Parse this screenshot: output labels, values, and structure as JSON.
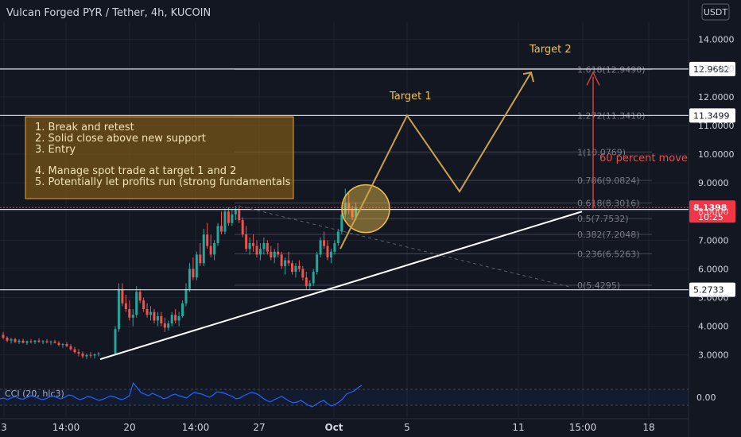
{
  "header": {
    "symbol_title": "Vulcan Forged PYR / Tether, 4h, KUCOIN",
    "currency": "USDT"
  },
  "colors": {
    "background": "#131722",
    "grid": "#1f2331",
    "axis_text": "#d1d4dc",
    "up_candle": "#26a69a",
    "down_candle": "#ef5350",
    "annotation_gold": "#f0c24a",
    "note_box_bg": "#9a6a12",
    "note_box_border": "#f0a030",
    "move_arrow": "#c9433f",
    "current_price_badge": "#f23645",
    "cci_line": "#2962ff"
  },
  "annotations": {
    "target1_label": "Target 1",
    "target2_label": "Target 2",
    "move_label": "60 percent move",
    "notes": [
      "1. Break and retest",
      "2. Solid close above new support",
      "3. Entry",
      "",
      "4. Manage spot trade at target 1 and 2",
      "5. Potentially let profits run (strong fundamentals"
    ]
  },
  "cci": {
    "label": "CCI (20, hlc3)",
    "axis_value": "0.00",
    "upper_band": 100,
    "lower_band": -100,
    "values": [
      -20,
      -10,
      -30,
      -5,
      10,
      -15,
      -25,
      -5,
      20,
      10,
      -10,
      -30,
      -20,
      5,
      15,
      -5,
      -20,
      0,
      30,
      20,
      -10,
      -30,
      -15,
      10,
      0,
      -20,
      -40,
      -25,
      -5,
      15,
      5,
      -15,
      -30,
      -10,
      20,
      180,
      120,
      60,
      40,
      20,
      50,
      30,
      10,
      -20,
      -5,
      25,
      40,
      20,
      5,
      -10,
      30,
      60,
      50,
      40,
      20,
      0,
      30,
      70,
      60,
      50,
      30,
      10,
      -20,
      -10,
      20,
      40,
      60,
      50,
      30,
      -10,
      -40,
      -60,
      -30,
      -10,
      10,
      -20,
      -50,
      -70,
      -60,
      -40,
      -70,
      -100,
      -120,
      -90,
      -60,
      -40,
      -80,
      -110,
      -90,
      -60,
      -20,
      40,
      60,
      80,
      120,
      150
    ]
  },
  "chart_data": {
    "type": "candlestick",
    "title": "Vulcan Forged PYR / Tether, 4h, KUCOIN",
    "yaxis": {
      "ticks": [
        "3.0000",
        "4.0000",
        "5.0000",
        "6.0000",
        "7.0000",
        "8.0000",
        "9.0000",
        "10.0000",
        "11.0000",
        "12.0000",
        "13.0000",
        "14.0000"
      ],
      "ylim": [
        2.3,
        14.6
      ]
    },
    "xaxis": {
      "ticks": [
        "3",
        "14:00",
        "20",
        "14:00",
        "27",
        "Oct",
        "5",
        "11",
        "15:00",
        "18"
      ]
    },
    "price_lines": [
      {
        "price": 12.9682,
        "label": "12.9682"
      },
      {
        "price": 11.3499,
        "label": "11.3499"
      },
      {
        "price": 8.0721,
        "label": "8.0721"
      },
      {
        "price": 5.2733,
        "label": "5.2733"
      }
    ],
    "current_price": {
      "price": 8.1398,
      "label": "8.1398",
      "countdown": "10:25"
    },
    "fibonacci": [
      {
        "label": "1.618(12.9490)",
        "price": 12.949
      },
      {
        "label": "1.272(11.3410)",
        "price": 11.341
      },
      {
        "label": "1(10.0769)",
        "price": 10.0769
      },
      {
        "label": "0.786(9.0824)",
        "price": 9.0824
      },
      {
        "label": "0.618(8.3016)",
        "price": 8.3016
      },
      {
        "label": "0.5(7.7532)",
        "price": 7.7532
      },
      {
        "label": "0.382(7.2048)",
        "price": 7.2048
      },
      {
        "label": "0.236(6.5263)",
        "price": 6.5263
      },
      {
        "label": "0(5.4295)",
        "price": 5.4295
      }
    ],
    "candles": [
      [
        3.7,
        3.8,
        3.55,
        3.6
      ],
      [
        3.6,
        3.65,
        3.45,
        3.5
      ],
      [
        3.5,
        3.6,
        3.4,
        3.55
      ],
      [
        3.55,
        3.6,
        3.42,
        3.45
      ],
      [
        3.45,
        3.55,
        3.38,
        3.5
      ],
      [
        3.5,
        3.56,
        3.4,
        3.42
      ],
      [
        3.42,
        3.5,
        3.35,
        3.48
      ],
      [
        3.48,
        3.55,
        3.4,
        3.45
      ],
      [
        3.45,
        3.52,
        3.38,
        3.5
      ],
      [
        3.5,
        3.58,
        3.42,
        3.46
      ],
      [
        3.46,
        3.52,
        3.38,
        3.48
      ],
      [
        3.48,
        3.55,
        3.4,
        3.44
      ],
      [
        3.44,
        3.5,
        3.35,
        3.47
      ],
      [
        3.47,
        3.53,
        3.4,
        3.42
      ],
      [
        3.42,
        3.48,
        3.3,
        3.35
      ],
      [
        3.35,
        3.42,
        3.25,
        3.38
      ],
      [
        3.38,
        3.45,
        3.28,
        3.3
      ],
      [
        3.3,
        3.38,
        3.15,
        3.2
      ],
      [
        3.2,
        3.28,
        3.05,
        3.1
      ],
      [
        3.1,
        3.2,
        2.95,
        3.05
      ],
      [
        3.05,
        3.12,
        2.88,
        2.95
      ],
      [
        2.95,
        3.05,
        2.85,
        3.0
      ],
      [
        3.0,
        3.1,
        2.9,
        2.98
      ],
      [
        2.98,
        3.05,
        2.88,
        3.02
      ],
      [
        3.02,
        3.1,
        2.95,
        3.05
      ],
      [
        3.05,
        4.0,
        3.0,
        3.9
      ],
      [
        3.9,
        5.5,
        3.8,
        5.3
      ],
      [
        5.3,
        5.5,
        4.7,
        4.8
      ],
      [
        4.8,
        5.1,
        4.5,
        4.6
      ],
      [
        4.6,
        4.9,
        4.2,
        4.3
      ],
      [
        4.3,
        4.6,
        4.0,
        4.4
      ],
      [
        4.4,
        5.4,
        4.3,
        5.2
      ],
      [
        5.2,
        5.3,
        4.8,
        4.9
      ],
      [
        4.9,
        5.0,
        4.5,
        4.6
      ],
      [
        4.6,
        4.8,
        4.3,
        4.4
      ],
      [
        4.4,
        4.7,
        4.2,
        4.5
      ],
      [
        4.5,
        4.6,
        4.1,
        4.2
      ],
      [
        4.2,
        4.5,
        4.0,
        4.35
      ],
      [
        4.35,
        4.5,
        4.0,
        4.1
      ],
      [
        4.1,
        4.3,
        3.8,
        3.95
      ],
      [
        3.95,
        4.2,
        3.85,
        4.1
      ],
      [
        4.1,
        4.5,
        4.0,
        4.4
      ],
      [
        4.4,
        4.6,
        4.1,
        4.2
      ],
      [
        4.2,
        4.5,
        4.0,
        4.35
      ],
      [
        4.35,
        4.9,
        4.3,
        4.8
      ],
      [
        4.8,
        5.5,
        4.7,
        5.3
      ],
      [
        5.3,
        6.2,
        5.2,
        6.0
      ],
      [
        6.0,
        6.4,
        5.6,
        5.7
      ],
      [
        5.7,
        6.6,
        5.6,
        6.5
      ],
      [
        6.5,
        6.9,
        6.1,
        6.2
      ],
      [
        6.2,
        7.4,
        6.1,
        7.2
      ],
      [
        7.2,
        7.6,
        6.7,
        6.8
      ],
      [
        6.8,
        7.2,
        6.4,
        6.5
      ],
      [
        6.5,
        7.0,
        6.3,
        6.9
      ],
      [
        6.9,
        7.6,
        6.8,
        7.5
      ],
      [
        7.5,
        8.0,
        7.2,
        7.3
      ],
      [
        7.3,
        8.1,
        7.2,
        8.0
      ],
      [
        8.0,
        8.15,
        7.5,
        7.6
      ],
      [
        7.6,
        8.1,
        7.5,
        7.9
      ],
      [
        7.9,
        8.2,
        7.7,
        8.05
      ],
      [
        8.05,
        8.15,
        7.6,
        7.7
      ],
      [
        7.7,
        7.8,
        7.1,
        7.2
      ],
      [
        7.2,
        7.5,
        6.6,
        6.7
      ],
      [
        6.7,
        7.1,
        6.5,
        6.9
      ],
      [
        6.9,
        7.2,
        6.6,
        6.8
      ],
      [
        6.8,
        7.0,
        6.4,
        6.5
      ],
      [
        6.5,
        6.9,
        6.3,
        6.7
      ],
      [
        6.7,
        7.1,
        6.5,
        6.9
      ],
      [
        6.9,
        7.0,
        6.5,
        6.6
      ],
      [
        6.6,
        6.8,
        6.3,
        6.4
      ],
      [
        6.4,
        6.7,
        6.2,
        6.6
      ],
      [
        6.6,
        6.9,
        6.4,
        6.5
      ],
      [
        6.5,
        6.6,
        6.0,
        6.1
      ],
      [
        6.1,
        6.4,
        5.8,
        6.3
      ],
      [
        6.3,
        6.6,
        6.1,
        6.2
      ],
      [
        6.2,
        6.3,
        5.8,
        5.9
      ],
      [
        5.9,
        6.2,
        5.7,
        6.1
      ],
      [
        6.1,
        6.3,
        5.9,
        6.0
      ],
      [
        6.0,
        6.1,
        5.6,
        5.7
      ],
      [
        5.7,
        5.9,
        5.3,
        5.4
      ],
      [
        5.4,
        5.6,
        5.25,
        5.5
      ],
      [
        5.5,
        6.0,
        5.4,
        5.9
      ],
      [
        5.9,
        6.6,
        5.8,
        6.5
      ],
      [
        6.5,
        7.1,
        6.4,
        7.0
      ],
      [
        7.0,
        7.3,
        6.7,
        6.8
      ],
      [
        6.8,
        7.0,
        6.3,
        6.4
      ],
      [
        6.4,
        6.7,
        6.2,
        6.6
      ],
      [
        6.6,
        7.0,
        6.5,
        6.9
      ],
      [
        6.9,
        7.4,
        6.8,
        7.3
      ],
      [
        7.3,
        8.0,
        7.2,
        7.9
      ],
      [
        7.9,
        8.8,
        7.8,
        8.3
      ],
      [
        8.3,
        8.7,
        7.9,
        8.1
      ],
      [
        8.1,
        8.2,
        7.7,
        7.8
      ],
      [
        7.8,
        8.3,
        7.7,
        8.14
      ]
    ],
    "trendline": {
      "from": {
        "index": 24,
        "price": 2.85
      },
      "to": {
        "index": 190,
        "price": 8.0
      }
    },
    "target_path": [
      {
        "index": 93,
        "price": 7.3
      },
      {
        "index": 105,
        "price": 11.35
      },
      {
        "index": 118,
        "price": 8.7
      },
      {
        "index": 133,
        "price": 12.9
      }
    ]
  }
}
